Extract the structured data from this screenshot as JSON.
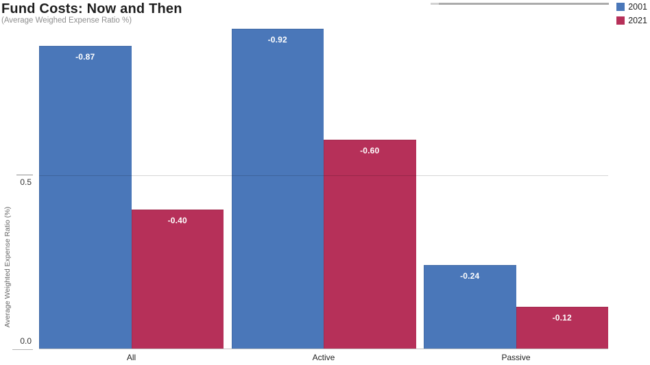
{
  "title": "Fund Costs: Now and Then",
  "subtitle": "(Average Weighed Expense Ratio %)",
  "legend": [
    {
      "label": "2001",
      "color": "#4a77b9"
    },
    {
      "label": "2021",
      "color": "#b63059"
    }
  ],
  "y_axis": {
    "title": "Average Weighted Expense Ratio (%)",
    "ticks": [
      "0.5",
      "0.0"
    ]
  },
  "chart_data": {
    "type": "bar",
    "title": "Fund Costs: Now and Then",
    "subtitle": "(Average Weighed Expense Ratio %)",
    "categories": [
      "All",
      "Active",
      "Passive"
    ],
    "series": [
      {
        "name": "2001",
        "color": "#4a77b9",
        "values": [
          0.87,
          0.92,
          0.24
        ],
        "data_labels": [
          "-0.87",
          "-0.92",
          "-0.24"
        ]
      },
      {
        "name": "2021",
        "color": "#b63059",
        "values": [
          0.4,
          0.6,
          0.12
        ],
        "data_labels": [
          "-0.40",
          "-0.60",
          "-0.12"
        ]
      }
    ],
    "xlabel": "",
    "ylabel": "Average Weighted Expense Ratio (%)",
    "ylim": [
      0.0,
      1.0
    ],
    "gridline_values": [
      0.0,
      0.5
    ],
    "grid": true,
    "legend_position": "top-right",
    "bar_label_color": "#ffffff"
  }
}
